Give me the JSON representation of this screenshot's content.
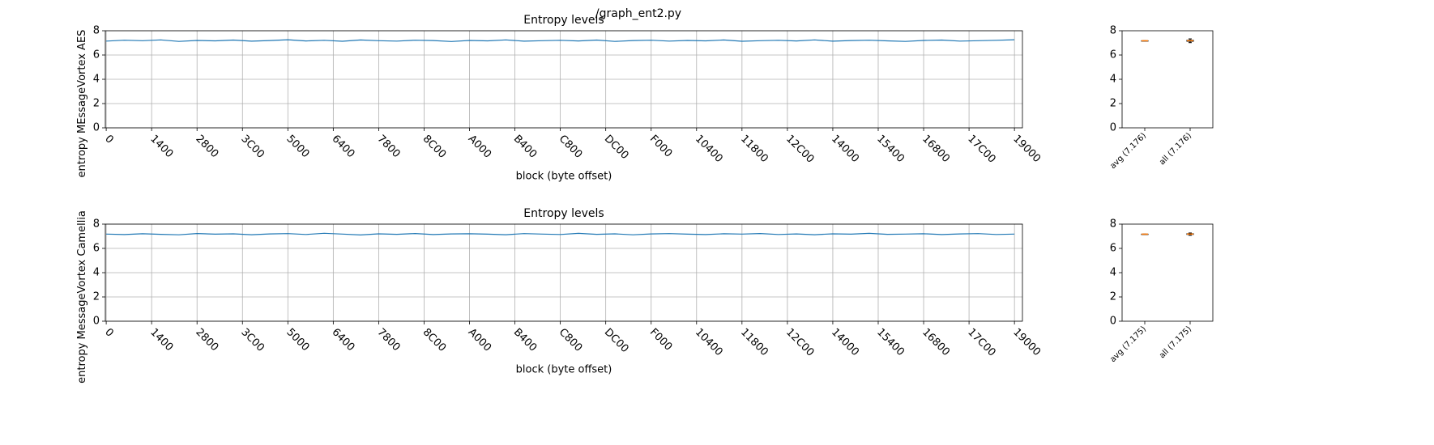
{
  "figure_title": "/graph_ent2.py",
  "chart_data": [
    {
      "type": "line",
      "title": "Entropy levels",
      "ylabel": "entropy MEssageVortex AES",
      "xlabel": "block (byte offset)",
      "color": "#1f77b4",
      "grid": true,
      "x": [
        0,
        2048,
        4096,
        6144,
        8192,
        10240,
        12288,
        14336,
        16384,
        18432,
        20480,
        22528,
        24576,
        26624,
        28672,
        30720,
        32768,
        34816,
        36864,
        38912,
        40960,
        43008,
        45056,
        47104,
        49152,
        51200,
        53248,
        55296,
        57344,
        59392,
        61440,
        63488,
        65536,
        67584,
        69632,
        71680,
        73728,
        75776,
        77824,
        79872,
        81920,
        83968,
        86016,
        88064,
        90112,
        92160,
        94208,
        96256,
        98304,
        100352,
        102400
      ],
      "values": [
        7.15,
        7.22,
        7.18,
        7.25,
        7.12,
        7.2,
        7.17,
        7.23,
        7.14,
        7.19,
        7.26,
        7.16,
        7.21,
        7.13,
        7.24,
        7.18,
        7.15,
        7.22,
        7.19,
        7.11,
        7.2,
        7.17,
        7.25,
        7.14,
        7.18,
        7.21,
        7.16,
        7.23,
        7.12,
        7.19,
        7.22,
        7.15,
        7.2,
        7.17,
        7.24,
        7.13,
        7.18,
        7.21,
        7.16,
        7.25,
        7.14,
        7.19,
        7.22,
        7.17,
        7.12,
        7.2,
        7.23,
        7.15,
        7.18,
        7.21,
        7.26
      ],
      "xlim": [
        -100,
        103300
      ],
      "xticks": [
        0,
        {
          "value": 5120,
          "label": "1400"
        },
        {
          "value": 10240,
          "label": "2800"
        },
        {
          "value": 15360,
          "label": "3C00"
        },
        {
          "value": 20480,
          "label": "5000"
        },
        {
          "value": 25600,
          "label": "6400"
        },
        {
          "value": 30720,
          "label": "7800"
        },
        {
          "value": 35840,
          "label": "8C00"
        },
        {
          "value": 40960,
          "label": "A000"
        },
        {
          "value": 46080,
          "label": "B400"
        },
        {
          "value": 51200,
          "label": "C800"
        },
        {
          "value": 56320,
          "label": "DC00"
        },
        {
          "value": 61440,
          "label": "F000"
        },
        {
          "value": 66560,
          "label": "10400"
        },
        {
          "value": 71680,
          "label": "11800"
        },
        {
          "value": 76800,
          "label": "12C00"
        },
        {
          "value": 81920,
          "label": "14000"
        },
        {
          "value": 87040,
          "label": "15400"
        },
        {
          "value": 92160,
          "label": "16800"
        },
        {
          "value": 97280,
          "label": "17C00"
        },
        {
          "value": 102400,
          "label": "19000"
        }
      ],
      "ylim": [
        0,
        8
      ],
      "yticks": [
        0,
        2,
        4,
        6,
        8
      ]
    },
    {
      "type": "box",
      "categories": [
        "avg (7.176)",
        "all (7.176)"
      ],
      "color": "#000000",
      "median_color": "#ff7f0e",
      "boxes": [
        {
          "min": 7.176,
          "q1": 7.176,
          "median": 7.176,
          "q3": 7.176,
          "max": 7.176
        },
        {
          "min": 7.02,
          "q1": 7.13,
          "median": 7.18,
          "q3": 7.22,
          "max": 7.33
        }
      ],
      "ylim": [
        0,
        8
      ],
      "yticks": [
        0,
        2,
        4,
        6,
        8
      ]
    },
    {
      "type": "line",
      "title": "Entropy levels",
      "ylabel": "entropy MessageVortex Camellia",
      "xlabel": "block (byte offset)",
      "color": "#1f77b4",
      "grid": true,
      "x": [
        0,
        2048,
        4096,
        6144,
        8192,
        10240,
        12288,
        14336,
        16384,
        18432,
        20480,
        22528,
        24576,
        26624,
        28672,
        30720,
        32768,
        34816,
        36864,
        38912,
        40960,
        43008,
        45056,
        47104,
        49152,
        51200,
        53248,
        55296,
        57344,
        59392,
        61440,
        63488,
        65536,
        67584,
        69632,
        71680,
        73728,
        75776,
        77824,
        79872,
        81920,
        83968,
        86016,
        88064,
        90112,
        92160,
        94208,
        96256,
        98304,
        100352,
        102400
      ],
      "values": [
        7.18,
        7.14,
        7.21,
        7.16,
        7.12,
        7.23,
        7.17,
        7.2,
        7.13,
        7.19,
        7.22,
        7.15,
        7.25,
        7.18,
        7.11,
        7.2,
        7.16,
        7.23,
        7.14,
        7.19,
        7.21,
        7.17,
        7.13,
        7.22,
        7.18,
        7.15,
        7.24,
        7.16,
        7.2,
        7.12,
        7.19,
        7.22,
        7.17,
        7.14,
        7.21,
        7.18,
        7.23,
        7.15,
        7.19,
        7.13,
        7.2,
        7.17,
        7.24,
        7.16,
        7.18,
        7.21,
        7.14,
        7.19,
        7.22,
        7.15,
        7.18
      ],
      "xlim": [
        -100,
        103300
      ],
      "xticks": [
        0,
        {
          "value": 5120,
          "label": "1400"
        },
        {
          "value": 10240,
          "label": "2800"
        },
        {
          "value": 15360,
          "label": "3C00"
        },
        {
          "value": 20480,
          "label": "5000"
        },
        {
          "value": 25600,
          "label": "6400"
        },
        {
          "value": 30720,
          "label": "7800"
        },
        {
          "value": 35840,
          "label": "8C00"
        },
        {
          "value": 40960,
          "label": "A000"
        },
        {
          "value": 46080,
          "label": "B400"
        },
        {
          "value": 51200,
          "label": "C800"
        },
        {
          "value": 56320,
          "label": "DC00"
        },
        {
          "value": 61440,
          "label": "F000"
        },
        {
          "value": 66560,
          "label": "10400"
        },
        {
          "value": 71680,
          "label": "11800"
        },
        {
          "value": 76800,
          "label": "12C00"
        },
        {
          "value": 81920,
          "label": "14000"
        },
        {
          "value": 87040,
          "label": "15400"
        },
        {
          "value": 92160,
          "label": "16800"
        },
        {
          "value": 97280,
          "label": "17C00"
        },
        {
          "value": 102400,
          "label": "19000"
        }
      ],
      "ylim": [
        0,
        8
      ],
      "yticks": [
        0,
        2,
        4,
        6,
        8
      ]
    },
    {
      "type": "box",
      "categories": [
        "avg (7.175)",
        "all (7.175)"
      ],
      "color": "#000000",
      "median_color": "#ff7f0e",
      "boxes": [
        {
          "min": 7.175,
          "q1": 7.175,
          "median": 7.175,
          "q3": 7.175,
          "max": 7.175
        },
        {
          "min": 7.08,
          "q1": 7.15,
          "median": 7.18,
          "q3": 7.21,
          "max": 7.27
        }
      ],
      "ylim": [
        0,
        8
      ],
      "yticks": [
        0,
        2,
        4,
        6,
        8
      ]
    }
  ]
}
